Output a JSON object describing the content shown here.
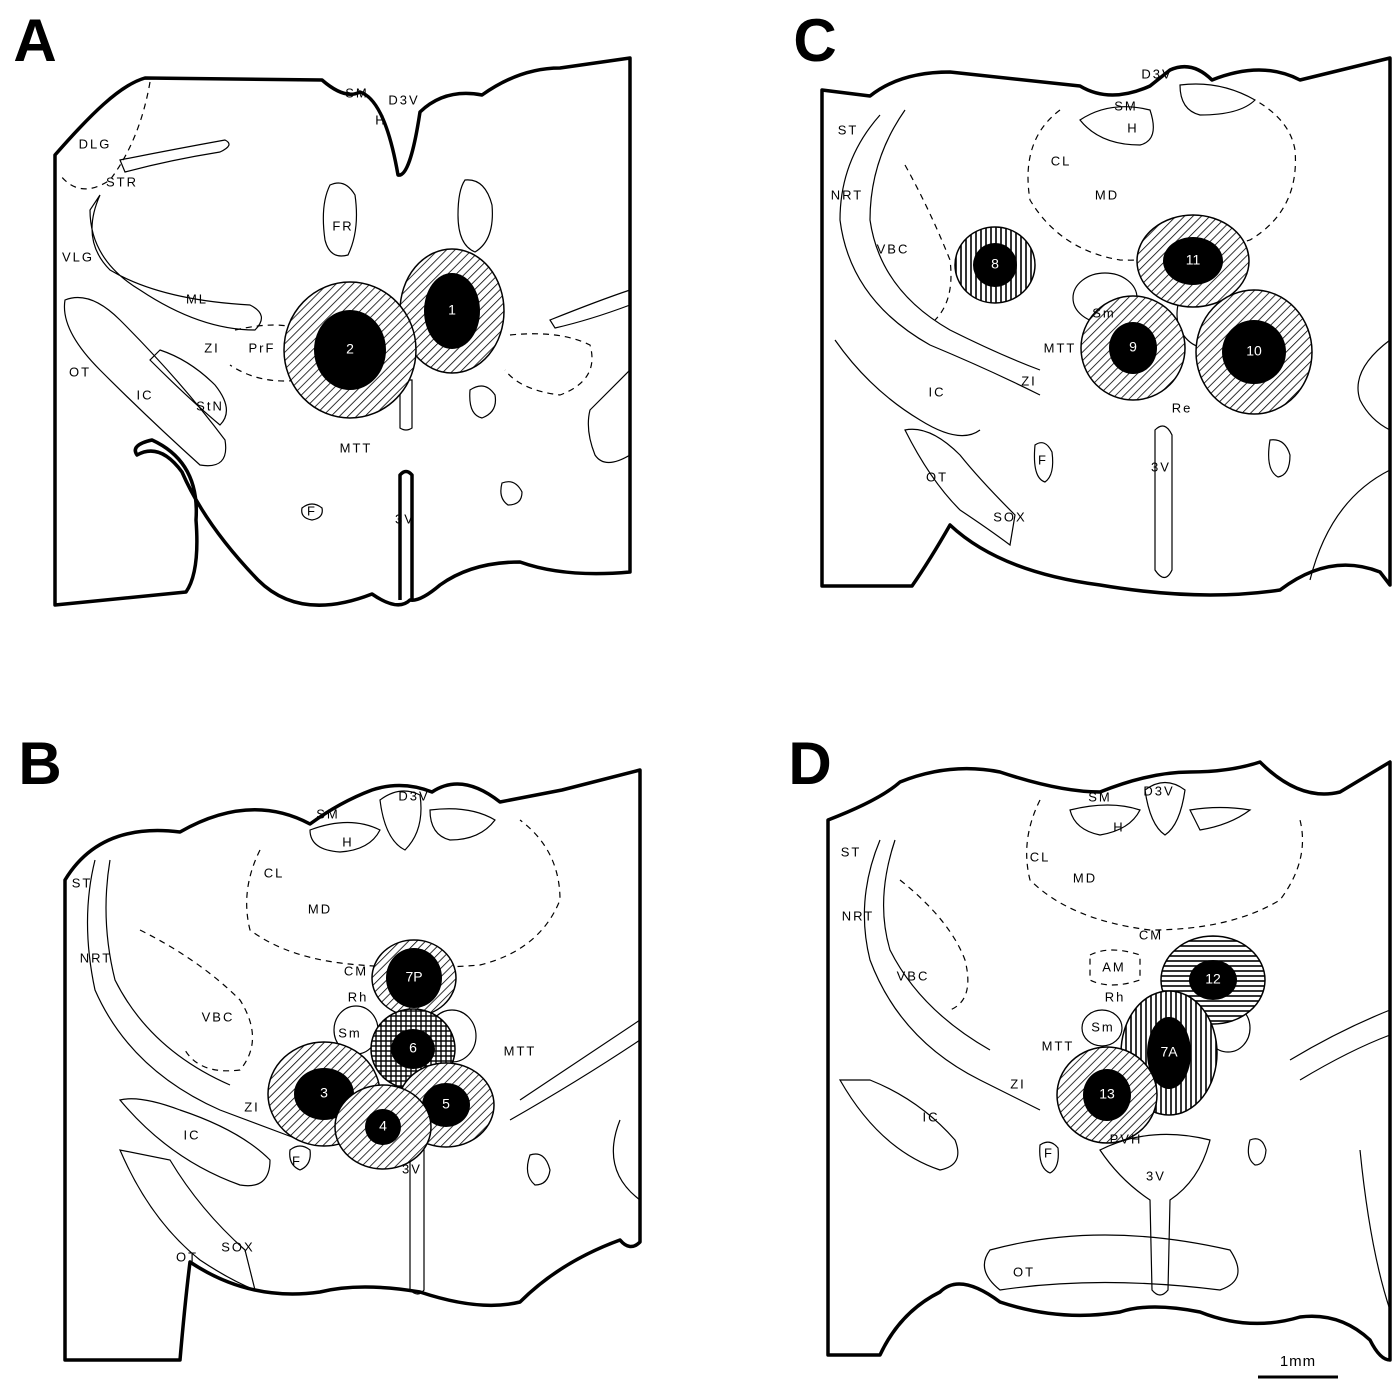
{
  "panels": [
    {
      "label": "A",
      "labels": [
        "SM",
        "H",
        "D3V",
        "DLG",
        "STR",
        "VLG",
        "FR",
        "ML",
        "ZI",
        "PrF",
        "OT",
        "IC",
        "StN",
        "MTT",
        "F",
        "3V"
      ],
      "lesions": [
        "1",
        "2"
      ]
    },
    {
      "label": "C",
      "labels": [
        "D3V",
        "SM",
        "H",
        "ST",
        "NRT",
        "CL",
        "MD",
        "VBC",
        "Sm",
        "MTT",
        "ZI",
        "IC",
        "Re",
        "OT",
        "F",
        "SOX",
        "3V"
      ],
      "lesions": [
        "8",
        "11",
        "9",
        "10"
      ]
    },
    {
      "label": "B",
      "labels": [
        "SM",
        "D3V",
        "H",
        "ST",
        "CL",
        "MD",
        "NRT",
        "CM",
        "Rh",
        "Sm",
        "VBC",
        "MTT",
        "ZI",
        "IC",
        "F",
        "3V",
        "OT",
        "SOX"
      ],
      "lesions": [
        "7P",
        "6",
        "3",
        "5",
        "4"
      ]
    },
    {
      "label": "D",
      "labels": [
        "SM",
        "D3V",
        "H",
        "ST",
        "CL",
        "MD",
        "NRT",
        "CM",
        "AM",
        "VBC",
        "Rh",
        "Sm",
        "MTT",
        "ZI",
        "IC",
        "PVH",
        "F",
        "3V",
        "OT"
      ],
      "lesions": [
        "12",
        "7A",
        "13"
      ]
    }
  ],
  "scale_bar": "1mm"
}
